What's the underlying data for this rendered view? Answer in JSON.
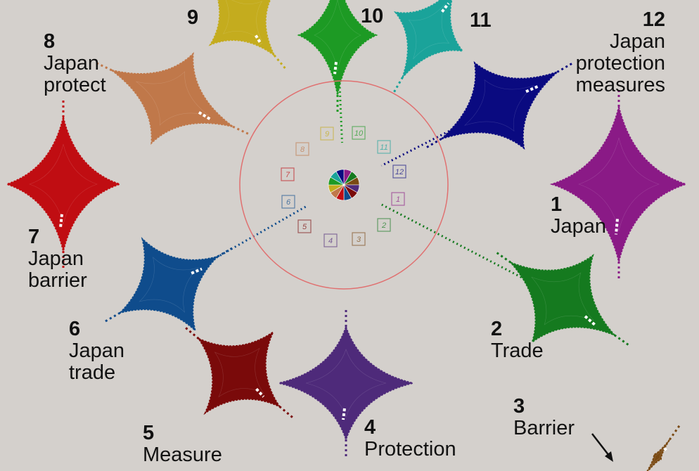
{
  "clusters": [
    {
      "number": "1",
      "label": [
        "Japan"
      ],
      "color": "#8a1a86"
    },
    {
      "number": "2",
      "label": [
        "Trade"
      ],
      "color": "#157a1f"
    },
    {
      "number": "3",
      "label": [
        "Barrier"
      ],
      "color": "#7a4a14"
    },
    {
      "number": "4",
      "label": [
        "Protection"
      ],
      "color": "#4e2a7a"
    },
    {
      "number": "5",
      "label": [
        "Measure"
      ],
      "color": "#7a0a0a"
    },
    {
      "number": "6",
      "label": [
        "Japan",
        "trade"
      ],
      "color": "#0f4c8c"
    },
    {
      "number": "7",
      "label": [
        "Japan",
        "barrier"
      ],
      "color": "#c00d12"
    },
    {
      "number": "8",
      "label": [
        "Japan",
        "protect"
      ],
      "color": "#c0784a"
    },
    {
      "number": "9",
      "label": [],
      "color": "#c4ac1e"
    },
    {
      "number": "10",
      "label": [],
      "color": "#1d9a24"
    },
    {
      "number": "11",
      "label": [],
      "color": "#1aa39a"
    },
    {
      "number": "12",
      "label": [
        "Japan",
        "protection",
        "measures"
      ],
      "color": "#0a0a80"
    }
  ],
  "ring_markers": [
    "1",
    "2",
    "3",
    "4",
    "5",
    "6",
    "7",
    "8",
    "9",
    "10",
    "11",
    "12"
  ],
  "colors": {
    "background": "#d4d0cc",
    "ring": "#e07070",
    "label_text": "#111111",
    "highlight": "#ffffff"
  },
  "icons": {
    "hub": "color-wheel-icon",
    "pointer": "arrow-icon"
  }
}
